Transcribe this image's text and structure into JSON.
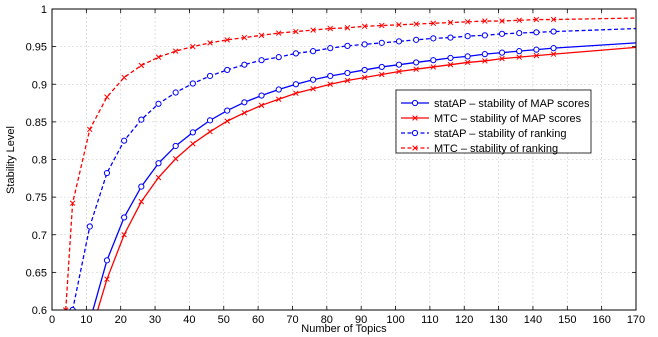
{
  "chart_data": {
    "type": "line",
    "title": "",
    "xlabel": "Number of Topics",
    "ylabel": "Stability Level",
    "xlim": [
      0,
      170
    ],
    "ylim": [
      0.6,
      1.0
    ],
    "xticks": [
      0,
      10,
      20,
      30,
      40,
      50,
      60,
      70,
      80,
      90,
      100,
      110,
      120,
      130,
      140,
      150,
      160,
      170
    ],
    "xtick_labels": [
      "0",
      "10",
      "20",
      "30",
      "40",
      "50",
      "60",
      "70",
      "80",
      "90",
      "100",
      "110",
      "120",
      "130",
      "140",
      "150",
      "160",
      "170"
    ],
    "yticks": [
      0.6,
      0.65,
      0.7,
      0.75,
      0.8,
      0.85,
      0.9,
      0.95,
      1.0
    ],
    "ytick_labels": [
      "0.6",
      "0.65",
      "0.7",
      "0.75",
      "0.8",
      "0.85",
      "0.9",
      "0.95",
      "1"
    ],
    "grid": true,
    "legend_position": "right",
    "series": [
      {
        "name": "statAP – stability of MAP scores",
        "color": "#0000ff",
        "line_style": "solid",
        "marker": "circle",
        "x": [
          11,
          16,
          21,
          26,
          31,
          36,
          41,
          46,
          51,
          56,
          61,
          66,
          71,
          76,
          81,
          86,
          91,
          96,
          101,
          106,
          111,
          116,
          121,
          126,
          131,
          136,
          141,
          146,
          170
        ],
        "y": [
          0.585,
          0.666,
          0.723,
          0.764,
          0.795,
          0.818,
          0.836,
          0.852,
          0.865,
          0.876,
          0.885,
          0.893,
          0.9,
          0.906,
          0.911,
          0.915,
          0.919,
          0.923,
          0.926,
          0.929,
          0.932,
          0.935,
          0.937,
          0.94,
          0.942,
          0.944,
          0.946,
          0.948,
          0.955
        ]
      },
      {
        "name": "MTC – stability of MAP scores",
        "color": "#ff0000",
        "line_style": "solid",
        "marker": "x",
        "x": [
          11,
          16,
          21,
          26,
          31,
          36,
          41,
          46,
          51,
          56,
          61,
          66,
          71,
          76,
          81,
          86,
          91,
          96,
          101,
          106,
          111,
          116,
          121,
          126,
          131,
          136,
          141,
          146,
          170
        ],
        "y": [
          0.565,
          0.641,
          0.7,
          0.744,
          0.776,
          0.801,
          0.821,
          0.837,
          0.851,
          0.862,
          0.872,
          0.88,
          0.888,
          0.894,
          0.9,
          0.905,
          0.909,
          0.913,
          0.917,
          0.92,
          0.923,
          0.926,
          0.929,
          0.931,
          0.934,
          0.936,
          0.938,
          0.94,
          0.949
        ]
      },
      {
        "name": "statAP – stability of ranking",
        "color": "#0000ff",
        "line_style": "dashed",
        "marker": "circle",
        "x": [
          6,
          11,
          16,
          21,
          26,
          31,
          36,
          41,
          46,
          51,
          56,
          61,
          66,
          71,
          76,
          81,
          86,
          91,
          96,
          101,
          106,
          111,
          116,
          121,
          126,
          131,
          136,
          141,
          146,
          170
        ],
        "y": [
          0.6,
          0.711,
          0.782,
          0.825,
          0.853,
          0.874,
          0.889,
          0.901,
          0.911,
          0.919,
          0.926,
          0.932,
          0.936,
          0.941,
          0.944,
          0.948,
          0.951,
          0.953,
          0.955,
          0.957,
          0.959,
          0.961,
          0.962,
          0.964,
          0.965,
          0.967,
          0.968,
          0.969,
          0.97,
          0.974
        ]
      },
      {
        "name": "MTC – stability of ranking",
        "color": "#ff0000",
        "line_style": "dashed",
        "marker": "x",
        "x": [
          4,
          6,
          11,
          16,
          21,
          26,
          31,
          36,
          41,
          46,
          51,
          56,
          61,
          66,
          71,
          76,
          81,
          86,
          91,
          96,
          101,
          106,
          111,
          116,
          121,
          126,
          131,
          136,
          141,
          146,
          170
        ],
        "y": [
          0.6,
          0.742,
          0.84,
          0.883,
          0.909,
          0.925,
          0.936,
          0.944,
          0.95,
          0.955,
          0.959,
          0.962,
          0.965,
          0.968,
          0.97,
          0.972,
          0.974,
          0.975,
          0.977,
          0.978,
          0.979,
          0.98,
          0.981,
          0.982,
          0.983,
          0.984,
          0.984,
          0.985,
          0.986,
          0.986,
          0.988
        ]
      }
    ]
  }
}
